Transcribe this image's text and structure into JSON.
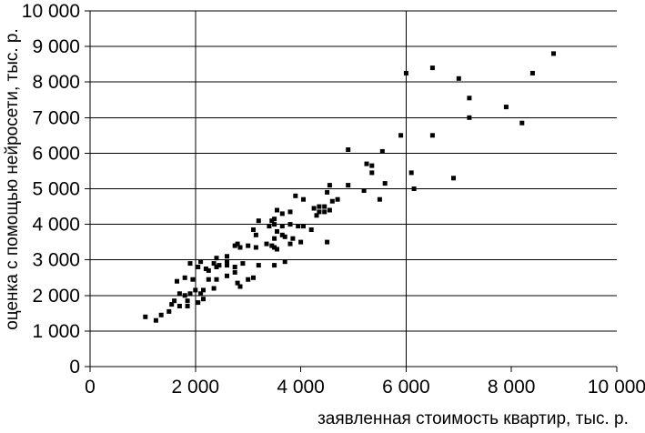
{
  "chart_data": {
    "type": "scatter",
    "title": "",
    "xlabel": "заявленная стоимость квартир, тыс. р.",
    "ylabel": "оценка с помощью нейросети, тыс. р.",
    "xlim": [
      0,
      10000
    ],
    "ylim": [
      0,
      10000
    ],
    "x_ticks": [
      0,
      2000,
      4000,
      6000,
      8000,
      10000
    ],
    "x_tick_labels": [
      "0",
      "2 000",
      "4 000",
      "6 000",
      "8 000",
      "10 000"
    ],
    "y_ticks": [
      0,
      1000,
      2000,
      3000,
      4000,
      5000,
      6000,
      7000,
      8000,
      9000,
      10000
    ],
    "y_tick_labels": [
      "0",
      "1 000",
      "2 000",
      "3 000",
      "4 000",
      "5 000",
      "6 000",
      "7 000",
      "8 000",
      "9 000",
      "10 000"
    ],
    "grid": {
      "horizontal_every": 1000,
      "vertical_at": [
        2000,
        6000
      ]
    },
    "legend": "none",
    "marker": "square",
    "marker_size_px": 5,
    "marker_color": "#000000",
    "axis_color": "#000000",
    "tick_font_px": 21,
    "points": [
      [
        1050,
        1400
      ],
      [
        1250,
        1300
      ],
      [
        1350,
        1450
      ],
      [
        1500,
        1550
      ],
      [
        1550,
        1750
      ],
      [
        1600,
        1850
      ],
      [
        1650,
        2400
      ],
      [
        1700,
        1700
      ],
      [
        1700,
        2050
      ],
      [
        1800,
        2000
      ],
      [
        1800,
        2500
      ],
      [
        1850,
        1700
      ],
      [
        1850,
        1850
      ],
      [
        1900,
        2050
      ],
      [
        1900,
        2900
      ],
      [
        1950,
        2450
      ],
      [
        2000,
        2150
      ],
      [
        2050,
        1800
      ],
      [
        2050,
        2800
      ],
      [
        2100,
        2050
      ],
      [
        2100,
        2950
      ],
      [
        2150,
        1900
      ],
      [
        2150,
        2150
      ],
      [
        2200,
        2750
      ],
      [
        2250,
        2450
      ],
      [
        2250,
        2700
      ],
      [
        2350,
        2200
      ],
      [
        2350,
        2900
      ],
      [
        2400,
        2450
      ],
      [
        2400,
        2800
      ],
      [
        2400,
        3050
      ],
      [
        2450,
        2850
      ],
      [
        2600,
        2550
      ],
      [
        2600,
        2850
      ],
      [
        2600,
        2950
      ],
      [
        2600,
        3100
      ],
      [
        2750,
        2650
      ],
      [
        2750,
        2800
      ],
      [
        2750,
        3400
      ],
      [
        2800,
        2350
      ],
      [
        2800,
        3450
      ],
      [
        2850,
        2250
      ],
      [
        2850,
        3350
      ],
      [
        2900,
        2900
      ],
      [
        3000,
        2450
      ],
      [
        3000,
        3400
      ],
      [
        3100,
        2500
      ],
      [
        3100,
        3850
      ],
      [
        3150,
        3350
      ],
      [
        3150,
        3700
      ],
      [
        3200,
        2850
      ],
      [
        3200,
        4100
      ],
      [
        3350,
        3450
      ],
      [
        3400,
        3950
      ],
      [
        3450,
        3400
      ],
      [
        3450,
        4100
      ],
      [
        3500,
        2850
      ],
      [
        3500,
        3350
      ],
      [
        3500,
        3600
      ],
      [
        3500,
        4000
      ],
      [
        3500,
        4150
      ],
      [
        3550,
        3300
      ],
      [
        3550,
        3800
      ],
      [
        3550,
        4400
      ],
      [
        3650,
        3700
      ],
      [
        3650,
        3950
      ],
      [
        3650,
        4300
      ],
      [
        3700,
        2950
      ],
      [
        3700,
        3650
      ],
      [
        3800,
        3450
      ],
      [
        3800,
        4000
      ],
      [
        3800,
        4350
      ],
      [
        3850,
        3600
      ],
      [
        3900,
        4800
      ],
      [
        3950,
        3950
      ],
      [
        4000,
        3500
      ],
      [
        4050,
        3950
      ],
      [
        4050,
        4700
      ],
      [
        4200,
        3850
      ],
      [
        4250,
        4450
      ],
      [
        4300,
        4250
      ],
      [
        4350,
        4350
      ],
      [
        4350,
        4500
      ],
      [
        4450,
        4350
      ],
      [
        4450,
        4500
      ],
      [
        4500,
        3500
      ],
      [
        4500,
        4900
      ],
      [
        4550,
        4400
      ],
      [
        4550,
        5100
      ],
      [
        4600,
        4650
      ],
      [
        4700,
        4700
      ],
      [
        4900,
        5100
      ],
      [
        4900,
        6100
      ],
      [
        5200,
        4950
      ],
      [
        5250,
        5700
      ],
      [
        5350,
        5450
      ],
      [
        5350,
        5650
      ],
      [
        5500,
        4700
      ],
      [
        5550,
        6050
      ],
      [
        5600,
        5150
      ],
      [
        5900,
        6500
      ],
      [
        6000,
        8250
      ],
      [
        6100,
        5450
      ],
      [
        6150,
        5000
      ],
      [
        6500,
        6500
      ],
      [
        6500,
        8400
      ],
      [
        6900,
        5300
      ],
      [
        7000,
        8100
      ],
      [
        7200,
        7000
      ],
      [
        7200,
        7550
      ],
      [
        7900,
        7300
      ],
      [
        8200,
        6850
      ],
      [
        8400,
        8250
      ],
      [
        8800,
        8800
      ]
    ]
  }
}
